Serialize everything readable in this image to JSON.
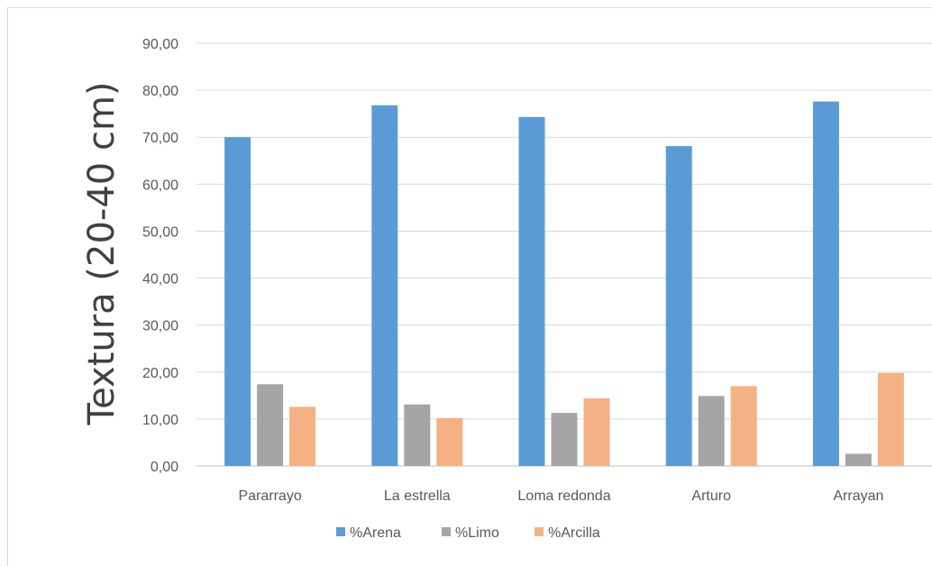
{
  "chart_data": {
    "type": "bar",
    "title": "",
    "xlabel": "",
    "ylabel": "Textura (20-40 cm)",
    "categories": [
      "Pararrayo",
      "La estrella",
      "Loma redonda",
      "Arturo",
      "Arrayan"
    ],
    "series": [
      {
        "name": "%Arena",
        "color": "#5b9bd5",
        "values": [
          70.0,
          76.8,
          74.3,
          68.1,
          77.6
        ]
      },
      {
        "name": "%Limo",
        "color": "#a5a5a5",
        "values": [
          17.4,
          13.1,
          11.3,
          14.9,
          2.6
        ]
      },
      {
        "name": "%Arcilla",
        "color": "#f4b183",
        "values": [
          12.6,
          10.2,
          14.4,
          17.0,
          19.8
        ]
      }
    ],
    "ylim": [
      0,
      90
    ],
    "yticks": [
      "0,00",
      "10,00",
      "20,00",
      "30,00",
      "40,00",
      "50,00",
      "60,00",
      "70,00",
      "80,00",
      "90,00"
    ],
    "grid": true,
    "legend_position": "bottom"
  }
}
